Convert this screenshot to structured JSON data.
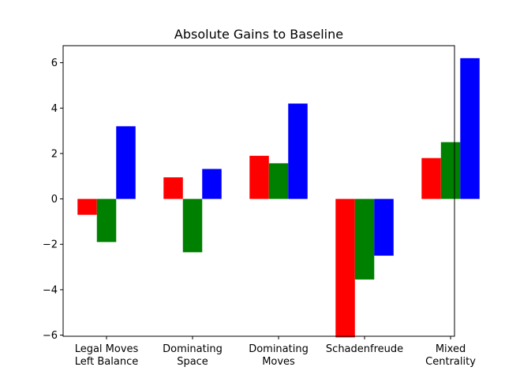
{
  "chart_data": {
    "type": "bar",
    "title": "Absolute Gains to Baseline",
    "xlabel": "",
    "ylabel": "",
    "categories": [
      [
        "Legal Moves",
        "Left Balance"
      ],
      [
        "Dominating",
        "Space"
      ],
      [
        "Dominating",
        "Moves"
      ],
      [
        "Schadenfreude"
      ],
      [
        "Mixed",
        "Centrality"
      ]
    ],
    "series": [
      {
        "color": "#ff0000",
        "values": [
          -0.7,
          0.95,
          1.9,
          -6.1,
          1.8
        ]
      },
      {
        "color": "#008000",
        "values": [
          -1.9,
          -2.35,
          1.57,
          -3.55,
          2.5
        ]
      },
      {
        "color": "#0000ff",
        "values": [
          3.2,
          1.32,
          4.2,
          -2.5,
          6.2
        ]
      }
    ],
    "ylim": [
      -6.05,
      6.75
    ],
    "yticks": [
      -6,
      -4,
      -2,
      0,
      2,
      4,
      6
    ],
    "ytick_labels": [
      "−6",
      "−4",
      "−2",
      "0",
      "2",
      "4",
      "6"
    ],
    "grid": false,
    "legend": "none"
  }
}
